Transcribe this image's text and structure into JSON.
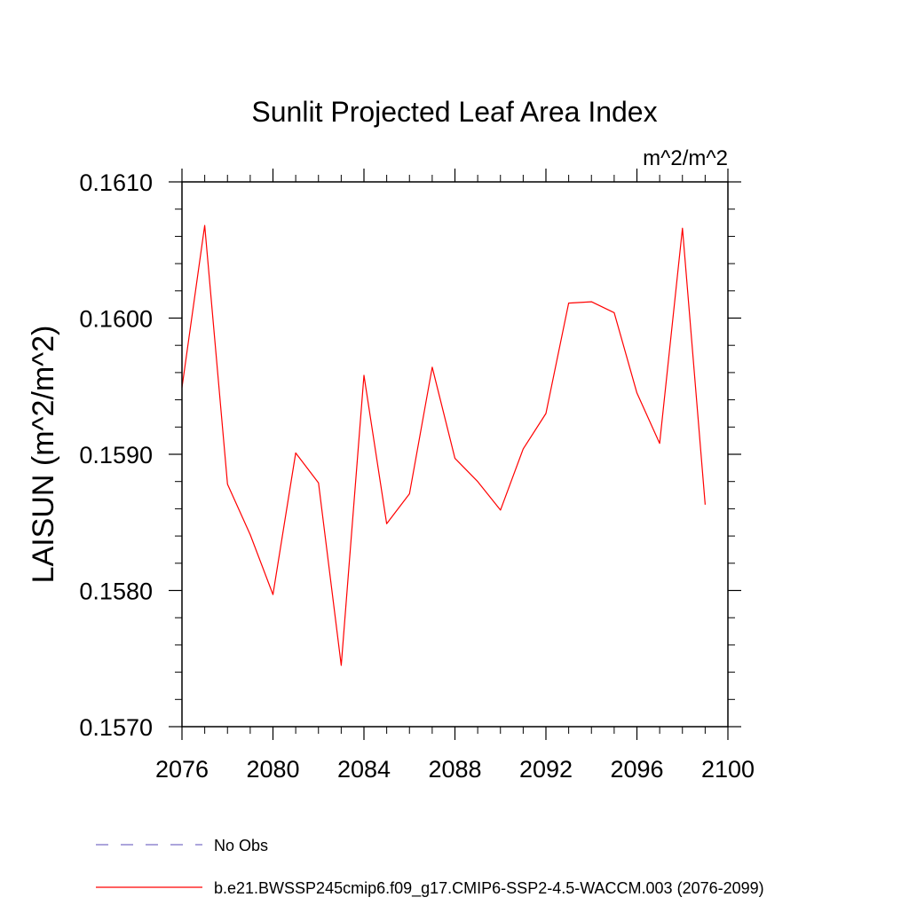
{
  "chart_data": {
    "type": "line",
    "title": "Sunlit Projected Leaf Area Index",
    "units_label": "m^2/m^2",
    "xlabel": "",
    "ylabel": "LAISUN  (m^2/m^2)",
    "xlim": [
      2076,
      2100
    ],
    "ylim": [
      0.157,
      0.161
    ],
    "x_ticks": [
      2076,
      2080,
      2084,
      2088,
      2092,
      2096,
      2100
    ],
    "x_tick_labels": [
      "2076",
      "2080",
      "2084",
      "2088",
      "2092",
      "2096",
      "2100"
    ],
    "y_ticks": [
      0.157,
      0.158,
      0.159,
      0.16,
      0.161
    ],
    "y_tick_labels": [
      "0.1570",
      "0.1580",
      "0.1590",
      "0.1600",
      "0.1610"
    ],
    "grid": false,
    "legend_position": "bottom",
    "series": [
      {
        "name": "b.e21.BWSSP245cmip6.f09_g17.CMIP6-SSP2-4.5-WACCM.003 (2076-2099)",
        "color": "#ff0000",
        "style": "solid",
        "x": [
          2076,
          2077,
          2078,
          2079,
          2080,
          2081,
          2082,
          2083,
          2084,
          2085,
          2086,
          2087,
          2088,
          2089,
          2090,
          2091,
          2092,
          2093,
          2094,
          2095,
          2096,
          2097,
          2098,
          2099
        ],
        "y": [
          0.15949,
          0.16068,
          0.15878,
          0.15841,
          0.15797,
          0.15901,
          0.15879,
          0.15745,
          0.15958,
          0.15849,
          0.15871,
          0.15964,
          0.15897,
          0.1588,
          0.15859,
          0.15904,
          0.1593,
          0.16011,
          0.16012,
          0.16004,
          0.15945,
          0.15908,
          0.16066,
          0.15863
        ]
      }
    ],
    "legend": [
      {
        "label": "No Obs",
        "color": "#7b6fc8",
        "style": "dashed"
      },
      {
        "label": "b.e21.BWSSP245cmip6.f09_g17.CMIP6-SSP2-4.5-WACCM.003 (2076-2099)",
        "color": "#ff0000",
        "style": "solid"
      }
    ]
  }
}
